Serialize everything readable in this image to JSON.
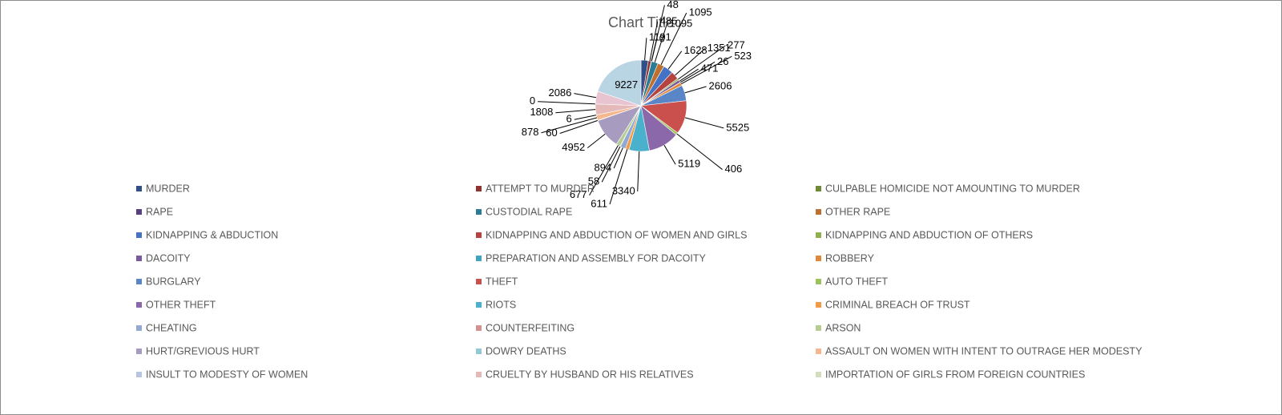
{
  "chart_data": {
    "type": "pie",
    "title": "Chart Title",
    "categories": [
      "MURDER",
      "ATTEMPT TO MURDER",
      "CULPABLE HOMICIDE NOT AMOUNTING TO MURDER",
      "RAPE",
      "CUSTODIAL RAPE",
      "OTHER RAPE",
      "KIDNAPPING & ABDUCTION",
      "KIDNAPPING AND ABDUCTION OF WOMEN AND GIRLS",
      "KIDNAPPING AND ABDUCTION OF OTHERS",
      "DACOITY",
      "PREPARATION AND ASSEMBLY FOR DACOITY",
      "ROBBERY",
      "BURGLARY",
      "THEFT",
      "AUTO THEFT",
      "OTHER THEFT",
      "RIOTS",
      "CRIMINAL BREACH OF TRUST",
      "CHEATING",
      "COUNTERFEITING",
      "ARSON",
      "HURT/GREVIOUS HURT",
      "DOWRY DEATHS",
      "ASSAULT ON WOMEN WITH INTENT TO OUTRAGE HER MODESTY",
      "INSULT TO MODESTY OF WOMEN",
      "CRUELTY BY HUSBAND OR HIS RELATIVES",
      "IMPORTATION OF GIRLS FROM FOREIGN COUNTRIES",
      null,
      null
    ],
    "values": [
      1191,
      485,
      48,
      0,
      1095,
      1095,
      1628,
      1351,
      277,
      471,
      26,
      523,
      2606,
      5525,
      406,
      5119,
      3340,
      611,
      894,
      58,
      677,
      4952,
      60,
      878,
      6,
      1808,
      0,
      2086,
      9227
    ],
    "colors": [
      "#2f4f86",
      "#8e3330",
      "#6e8a37",
      "#5a3f7f",
      "#2c7b94",
      "#c0702e",
      "#4472c4",
      "#b54340",
      "#8fb04c",
      "#7a5a9c",
      "#3fa4c0",
      "#e0883a",
      "#5a86c8",
      "#c9504c",
      "#9bc35a",
      "#8a68aa",
      "#4bb0cb",
      "#f29a45",
      "#94a9d2",
      "#d3928f",
      "#b6cc92",
      "#a89bc0",
      "#92c7d6",
      "#f5b88e",
      "#b7c5e0",
      "#e4b9b8",
      "#d2dfbf",
      "#e8c4d0",
      "#b9d4e3"
    ],
    "legend": true
  }
}
